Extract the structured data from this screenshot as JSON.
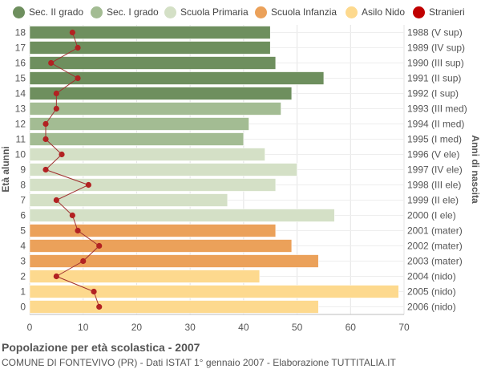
{
  "chart_data": {
    "type": "bar",
    "orientation": "horizontal",
    "title": "Popolazione per età scolastica - 2007",
    "subtitle": "COMUNE DI FONTEVIVO (PR) - Dati ISTAT 1° gennaio 2007 - Elaborazione TUTTITALIA.IT",
    "ylabel_left": "Età alunni",
    "ylabel_right": "Anni di nascita",
    "xlim": [
      0,
      70
    ],
    "xticks": [
      0,
      10,
      20,
      30,
      40,
      50,
      60,
      70
    ],
    "grid": true,
    "legend_position": "top",
    "legend": [
      {
        "label": "Sec. II grado",
        "color": "#6e8f5e"
      },
      {
        "label": "Sec. I grado",
        "color": "#a3bc93"
      },
      {
        "label": "Scuola Primaria",
        "color": "#d4e0c6"
      },
      {
        "label": "Scuola Infanzia",
        "color": "#eba15a"
      },
      {
        "label": "Asilo Nido",
        "color": "#fdd98e"
      },
      {
        "label": "Stranieri",
        "color": "#c00000"
      }
    ],
    "rows": [
      {
        "age": "18",
        "birth": "1988 (V sup)",
        "value": 45,
        "stranieri": 8,
        "group": 0
      },
      {
        "age": "17",
        "birth": "1989 (IV sup)",
        "value": 45,
        "stranieri": 9,
        "group": 0
      },
      {
        "age": "16",
        "birth": "1990 (III sup)",
        "value": 46,
        "stranieri": 4,
        "group": 0
      },
      {
        "age": "15",
        "birth": "1991 (II sup)",
        "value": 55,
        "stranieri": 9,
        "group": 0
      },
      {
        "age": "14",
        "birth": "1992 (I sup)",
        "value": 49,
        "stranieri": 5,
        "group": 0
      },
      {
        "age": "13",
        "birth": "1993 (III med)",
        "value": 47,
        "stranieri": 5,
        "group": 1
      },
      {
        "age": "12",
        "birth": "1994 (II med)",
        "value": 41,
        "stranieri": 3,
        "group": 1
      },
      {
        "age": "11",
        "birth": "1995 (I med)",
        "value": 40,
        "stranieri": 3,
        "group": 1
      },
      {
        "age": "10",
        "birth": "1996 (V ele)",
        "value": 44,
        "stranieri": 6,
        "group": 2
      },
      {
        "age": "9",
        "birth": "1997 (IV ele)",
        "value": 50,
        "stranieri": 3,
        "group": 2
      },
      {
        "age": "8",
        "birth": "1998 (III ele)",
        "value": 46,
        "stranieri": 11,
        "group": 2
      },
      {
        "age": "7",
        "birth": "1999 (II ele)",
        "value": 37,
        "stranieri": 5,
        "group": 2
      },
      {
        "age": "6",
        "birth": "2000 (I ele)",
        "value": 57,
        "stranieri": 8,
        "group": 2
      },
      {
        "age": "5",
        "birth": "2001 (mater)",
        "value": 46,
        "stranieri": 9,
        "group": 3
      },
      {
        "age": "4",
        "birth": "2002 (mater)",
        "value": 49,
        "stranieri": 13,
        "group": 3
      },
      {
        "age": "3",
        "birth": "2003 (mater)",
        "value": 54,
        "stranieri": 10,
        "group": 3
      },
      {
        "age": "2",
        "birth": "2004 (nido)",
        "value": 43,
        "stranieri": 5,
        "group": 4
      },
      {
        "age": "1",
        "birth": "2005 (nido)",
        "value": 69,
        "stranieri": 12,
        "group": 4
      },
      {
        "age": "0",
        "birth": "2006 (nido)",
        "value": 54,
        "stranieri": 13,
        "group": 4
      }
    ]
  }
}
